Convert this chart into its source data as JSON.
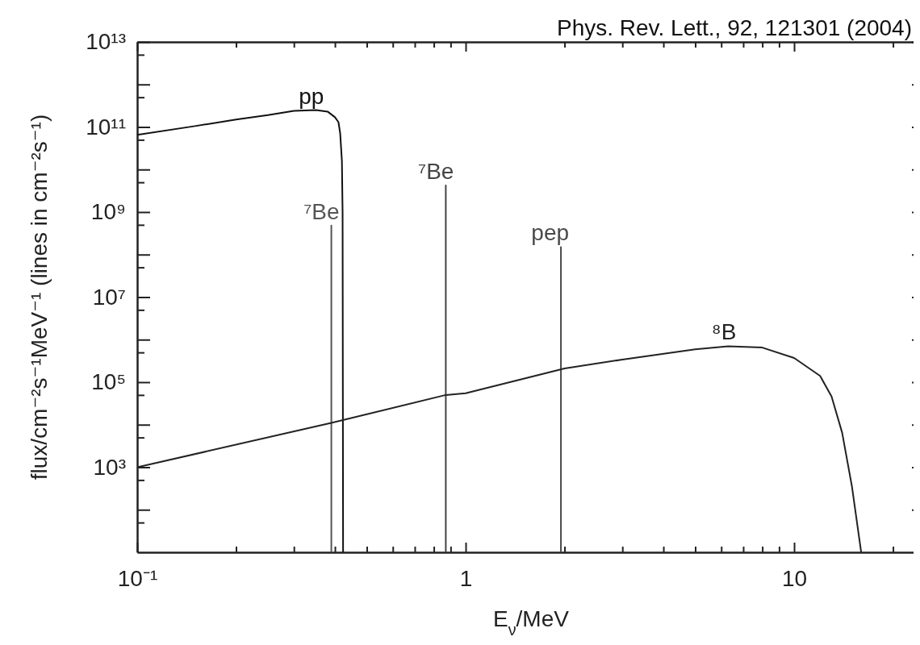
{
  "chart_data": {
    "type": "line",
    "xlabel": "E$_{ν}$/MeV",
    "ylabel": "flux/cm⁻²s⁻¹MeV⁻¹ (lines in cm⁻²s⁻¹)",
    "annotations": [
      "Phys. Rev. Lett., 92, 121301 (2004)"
    ],
    "log": "xy",
    "grid": false,
    "marker": "none",
    "line_style": "solid",
    "xlim": [
      0.1,
      25
    ],
    "ylim": [
      10,
      10000000000000.0
    ],
    "xticks": [
      {
        "value": 0.1,
        "label": "10⁻¹"
      },
      {
        "value": 0.2,
        "label": null
      },
      {
        "value": 0.3,
        "label": null
      },
      {
        "value": 0.4,
        "label": null
      },
      {
        "value": 0.5,
        "label": null
      },
      {
        "value": 0.6,
        "label": null
      },
      {
        "value": 0.7,
        "label": null
      },
      {
        "value": 0.8,
        "label": null
      },
      {
        "value": 0.9,
        "label": null
      },
      1,
      {
        "value": 2,
        "label": null
      },
      {
        "value": 3,
        "label": null
      },
      {
        "value": 4,
        "label": null
      },
      {
        "value": 5,
        "label": null
      },
      {
        "value": 6,
        "label": null
      },
      {
        "value": 7,
        "label": null
      },
      {
        "value": 8,
        "label": null
      },
      {
        "value": 9,
        "label": null
      },
      10,
      {
        "value": 20,
        "label": null
      }
    ],
    "yticks": [
      {
        "value": 10000000000000.0,
        "label": "10¹³"
      },
      {
        "value": 5000000000000.0,
        "label": null
      },
      {
        "value": 1000000000000.0,
        "label": null
      },
      {
        "value": 500000000000.0,
        "label": null
      },
      {
        "value": 100000000000.0,
        "label": "10¹¹"
      },
      {
        "value": 50000000000.0,
        "label": null
      },
      {
        "value": 10000000000.0,
        "label": null
      },
      {
        "value": 5000000000.0,
        "label": null
      },
      {
        "value": 1000000000.0,
        "label": "10⁹"
      },
      {
        "value": 500000000.0,
        "label": null
      },
      {
        "value": 100000000.0,
        "label": null
      },
      {
        "value": 50000000.0,
        "label": null
      },
      {
        "value": 10000000.0,
        "label": "10⁷"
      },
      {
        "value": 5000000.0,
        "label": null
      },
      {
        "value": 1000000.0,
        "label": null
      },
      {
        "value": 500000.0,
        "label": null
      },
      {
        "value": 100000.0,
        "label": "10⁵"
      },
      {
        "value": 50000.0,
        "label": null
      },
      {
        "value": 10000.0,
        "label": null
      },
      {
        "value": 5000.0,
        "label": null
      },
      {
        "value": 1000.0,
        "label": "10³"
      },
      {
        "value": 500,
        "label": null
      },
      {
        "value": 100,
        "label": null
      },
      {
        "value": 50,
        "label": null
      }
    ],
    "series": [
      {
        "name": "pp",
        "color": "#111111",
        "x": [
          0.1,
          0.15,
          0.2,
          0.25,
          0.3,
          0.35,
          0.38,
          0.4,
          0.41,
          0.415,
          0.42,
          0.422,
          0.4235
        ],
        "values": [
          65000000000.0,
          105000000000.0,
          150000000000.0,
          190000000000.0,
          240000000000.0,
          250000000000.0,
          230000000000.0,
          170000000000.0,
          130000000000.0,
          70000000000.0,
          16000000000.0,
          1000000000.0,
          10
        ]
      },
      {
        "name": "⁷Be",
        "color": "#555555",
        "x": [
          0.39,
          0.39
        ],
        "values": [
          10,
          480000000.0
        ]
      },
      {
        "name": "⁷Be",
        "color": "#444444",
        "x": [
          0.87,
          0.87
        ],
        "values": [
          10,
          4200000000.0
        ]
      },
      {
        "name": "pep",
        "color": "#4a4a4a",
        "x": [
          1.95,
          1.95
        ],
        "values": [
          10,
          150000000.0
        ]
      },
      {
        "name": "⁸B",
        "color": "#222222",
        "x": [
          0.1,
          0.39,
          0.87,
          1,
          2,
          3,
          5,
          6.3,
          8,
          10,
          12,
          13,
          14,
          15,
          16
        ],
        "values": [
          1000.0,
          11000.0,
          50000.0,
          55000.0,
          210000.0,
          340000.0,
          590000.0,
          700000.0,
          650000.0,
          370000.0,
          140000.0,
          46000.0,
          6500.0,
          350,
          10
        ]
      }
    ]
  }
}
